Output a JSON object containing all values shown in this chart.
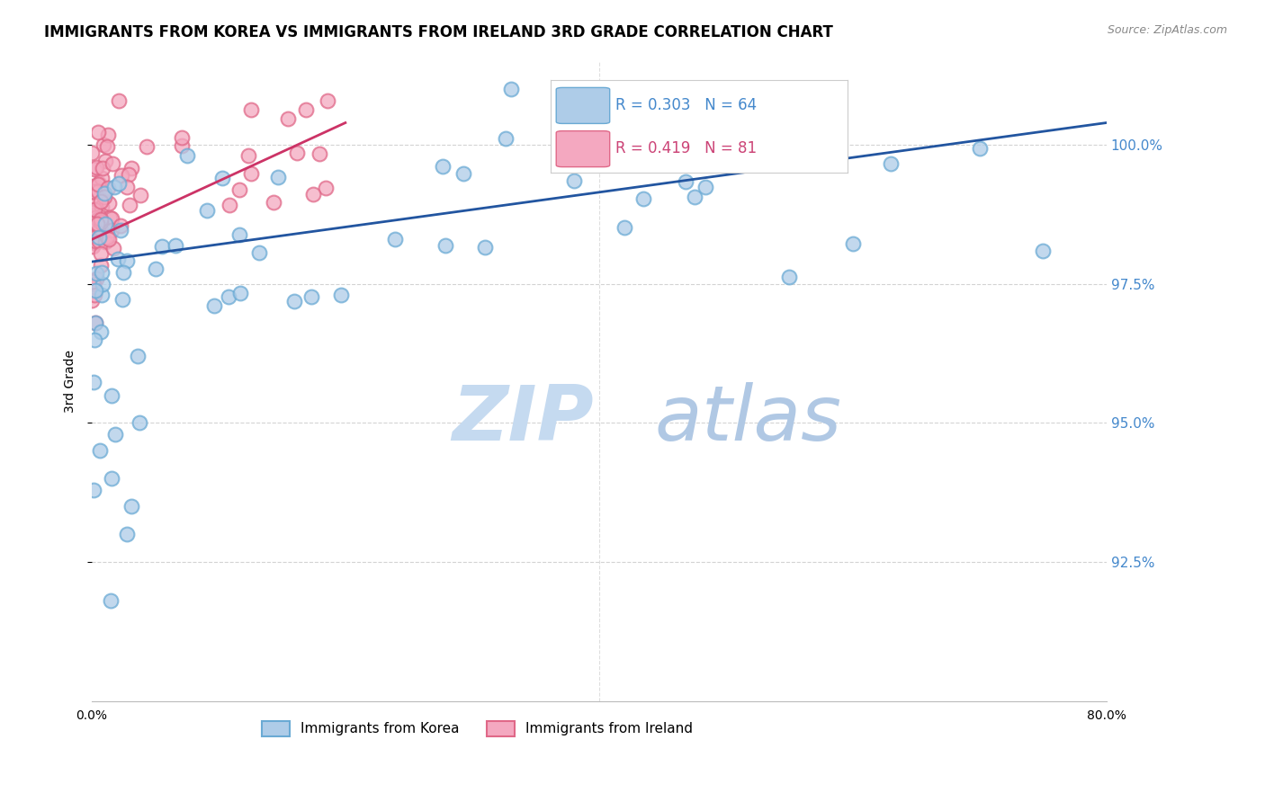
{
  "title": "IMMIGRANTS FROM KOREA VS IMMIGRANTS FROM IRELAND 3RD GRADE CORRELATION CHART",
  "source": "Source: ZipAtlas.com",
  "ylabel": "3rd Grade",
  "xlim": [
    0.0,
    80.0
  ],
  "ylim": [
    90.0,
    101.5
  ],
  "yticks": [
    92.5,
    95.0,
    97.5,
    100.0
  ],
  "xtick_labels": [
    "0.0%",
    "",
    "",
    "",
    "",
    "",
    "",
    "",
    "80.0%"
  ],
  "ytick_labels": [
    "92.5%",
    "95.0%",
    "97.5%",
    "100.0%"
  ],
  "korea_color": "#aecce8",
  "ireland_color": "#f4a8c0",
  "korea_edge_color": "#6aaad4",
  "ireland_edge_color": "#e06888",
  "korea_line_color": "#2255a0",
  "ireland_line_color": "#cc3366",
  "korea_R": 0.303,
  "korea_N": 64,
  "ireland_R": 0.419,
  "ireland_N": 81,
  "watermark_zip_color": "#cfe0f0",
  "watermark_atlas_color": "#b8cfe8",
  "background_color": "#ffffff",
  "grid_color": "#c8c8c8",
  "tick_color_right": "#4488cc",
  "title_fontsize": 12,
  "legend_korea_color": "#4488cc",
  "legend_ireland_color": "#cc4477"
}
